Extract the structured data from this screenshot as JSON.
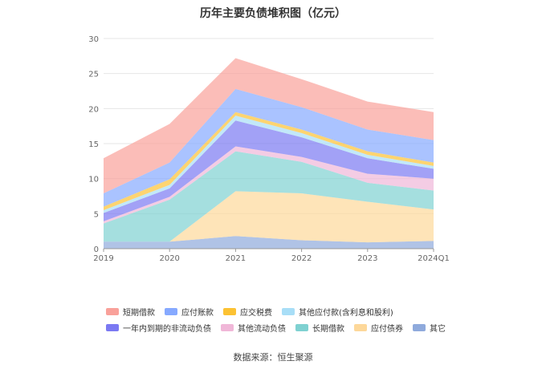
{
  "chart_data": {
    "type": "area",
    "title": "历年主要负债堆积图（亿元）",
    "x": [
      "2019",
      "2020",
      "2021",
      "2022",
      "2023",
      "2024Q1"
    ],
    "yticks": [
      "0",
      "5",
      "10",
      "15",
      "20",
      "25",
      "30"
    ],
    "ylim": [
      0,
      30
    ],
    "stacked": true,
    "grid": true,
    "legend_position": "bottom",
    "series": [
      {
        "name": "其它",
        "color": "#8faadc",
        "values": [
          1.0,
          1.0,
          1.8,
          1.2,
          0.9,
          1.1
        ]
      },
      {
        "name": "应付债券",
        "color": "#fdd89a",
        "values": [
          0.0,
          0.0,
          6.4,
          6.7,
          5.8,
          4.5
        ]
      },
      {
        "name": "长期借款",
        "color": "#7fd1d1",
        "values": [
          2.6,
          6.0,
          5.7,
          4.5,
          2.7,
          2.7
        ]
      },
      {
        "name": "其他流动负债",
        "color": "#f0b7d8",
        "values": [
          0.3,
          0.4,
          0.7,
          0.7,
          1.3,
          1.7
        ]
      },
      {
        "name": "一年内到期的非流动负债",
        "color": "#7b79f2",
        "values": [
          1.2,
          1.2,
          3.7,
          2.8,
          2.2,
          1.4
        ]
      },
      {
        "name": "其他应付款(含利息和股利)",
        "color": "#a8def7",
        "values": [
          0.4,
          0.5,
          0.7,
          0.6,
          0.5,
          0.4
        ]
      },
      {
        "name": "应交税费",
        "color": "#fcc233",
        "values": [
          0.5,
          0.8,
          0.5,
          0.5,
          0.5,
          0.5
        ]
      },
      {
        "name": "应付账款",
        "color": "#86a9ff",
        "values": [
          1.9,
          2.4,
          3.3,
          3.2,
          3.1,
          3.2
        ]
      },
      {
        "name": "短期借款",
        "color": "#f9a19a",
        "values": [
          5.0,
          5.5,
          4.4,
          4.0,
          4.0,
          4.0
        ]
      }
    ]
  },
  "legend_rows": [
    [
      "短期借款",
      "应付账款",
      "应交税费",
      "其他应付款(含利息和股利)"
    ],
    [
      "一年内到期的非流动负债",
      "其他流动负债",
      "长期借款",
      "应付债券",
      "其它"
    ]
  ],
  "source": "数据来源：恒生聚源"
}
